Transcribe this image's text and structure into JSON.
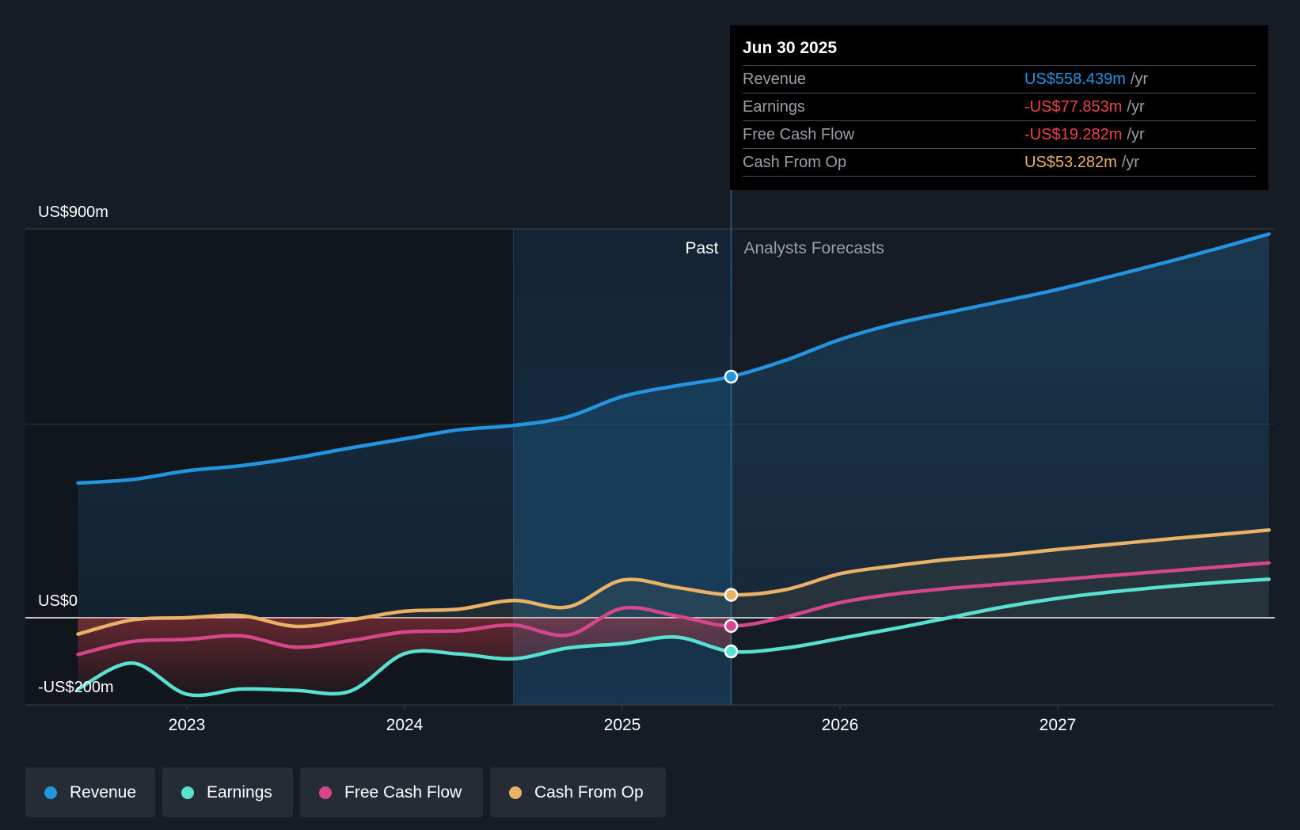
{
  "colors": {
    "background": "#161c25",
    "revenue": "#2394df",
    "earnings": "#59e0d1",
    "free_cash_flow": "#d5468c",
    "cash_from_op": "#e9b266",
    "negative": "#e8464b"
  },
  "tooltip": {
    "date": "Jun 30 2025",
    "rows": [
      {
        "label": "Revenue",
        "value": "US$558.439m",
        "unit": "/yr",
        "color": "#2394df"
      },
      {
        "label": "Earnings",
        "value": "-US$77.853m",
        "unit": "/yr",
        "color": "#e8464b"
      },
      {
        "label": "Free Cash Flow",
        "value": "-US$19.282m",
        "unit": "/yr",
        "color": "#e8464b"
      },
      {
        "label": "Cash From Op",
        "value": "US$53.282m",
        "unit": "/yr",
        "color": "#e9b266"
      }
    ]
  },
  "legend": [
    {
      "label": "Revenue",
      "color": "#2394df"
    },
    {
      "label": "Earnings",
      "color": "#59e0d1"
    },
    {
      "label": "Free Cash Flow",
      "color": "#d5468c"
    },
    {
      "label": "Cash From Op",
      "color": "#e9b266"
    }
  ],
  "chart_data": {
    "type": "line",
    "title": "",
    "xlabel": "",
    "ylabel": "",
    "ylim": [
      -200,
      900
    ],
    "xlim": [
      2022.25,
      2027.97
    ],
    "y_tick_labels": [
      {
        "value": 900,
        "label": "US$900m"
      },
      {
        "value": 0,
        "label": "US$0"
      },
      {
        "value": -200,
        "label": "-US$200m"
      }
    ],
    "x_tick_labels": [
      {
        "value": 2023,
        "label": "2023"
      },
      {
        "value": 2024,
        "label": "2024"
      },
      {
        "value": 2025,
        "label": "2025"
      },
      {
        "value": 2026,
        "label": "2026"
      },
      {
        "value": 2027,
        "label": "2027"
      }
    ],
    "divider_x": 2025.5,
    "past_label": "Past",
    "forecast_label": "Analysts Forecasts",
    "highlight_start_x": 2024.5,
    "series": [
      {
        "name": "Revenue",
        "color": "#2394df",
        "x": [
          2022.5,
          2022.75,
          2023.0,
          2023.25,
          2023.5,
          2023.75,
          2024.0,
          2024.25,
          2024.5,
          2024.75,
          2025.0,
          2025.25,
          2025.5,
          2025.75,
          2026.0,
          2026.25,
          2026.5,
          2026.75,
          2027.0,
          2027.25,
          2027.5,
          2027.75,
          2027.97
        ],
        "values": [
          312,
          320,
          340,
          352,
          370,
          393,
          414,
          435,
          445,
          465,
          512,
          537,
          558,
          596,
          644,
          680,
          707,
          733,
          760,
          791,
          823,
          857,
          888
        ]
      },
      {
        "name": "Earnings",
        "color": "#59e0d1",
        "x": [
          2022.5,
          2022.75,
          2023.0,
          2023.25,
          2023.5,
          2023.75,
          2024.0,
          2024.25,
          2024.5,
          2024.75,
          2025.0,
          2025.25,
          2025.5,
          2025.75,
          2026.0,
          2026.25,
          2026.5,
          2026.75,
          2027.0,
          2027.25,
          2027.5,
          2027.75,
          2027.97
        ],
        "values": [
          -165,
          -105,
          -177,
          -165,
          -168,
          -170,
          -83,
          -84,
          -95,
          -70,
          -60,
          -45,
          -78,
          -70,
          -48,
          -25,
          0,
          25,
          45,
          60,
          72,
          82,
          89
        ]
      },
      {
        "name": "Free Cash Flow",
        "color": "#d5468c",
        "x": [
          2022.5,
          2022.75,
          2023.0,
          2023.25,
          2023.5,
          2023.75,
          2024.0,
          2024.25,
          2024.5,
          2024.75,
          2025.0,
          2025.25,
          2025.5,
          2025.75,
          2026.0,
          2026.25,
          2026.5,
          2026.75,
          2027.0,
          2027.25,
          2027.5,
          2027.75,
          2027.97
        ],
        "values": [
          -85,
          -55,
          -50,
          -42,
          -68,
          -53,
          -33,
          -30,
          -17,
          -40,
          22,
          4,
          -19,
          2,
          35,
          55,
          68,
          78,
          88,
          98,
          108,
          118,
          127
        ]
      },
      {
        "name": "Cash From Op",
        "color": "#e9b266",
        "x": [
          2022.5,
          2022.75,
          2023.0,
          2023.25,
          2023.5,
          2023.75,
          2024.0,
          2024.25,
          2024.5,
          2024.75,
          2025.0,
          2025.25,
          2025.5,
          2025.75,
          2026.0,
          2026.25,
          2026.5,
          2026.75,
          2027.0,
          2027.25,
          2027.5,
          2027.75,
          2027.97
        ],
        "values": [
          -38,
          -5,
          0,
          5,
          -20,
          -5,
          15,
          20,
          40,
          25,
          87,
          70,
          53,
          65,
          102,
          120,
          135,
          145,
          158,
          170,
          182,
          193,
          203
        ]
      }
    ]
  }
}
